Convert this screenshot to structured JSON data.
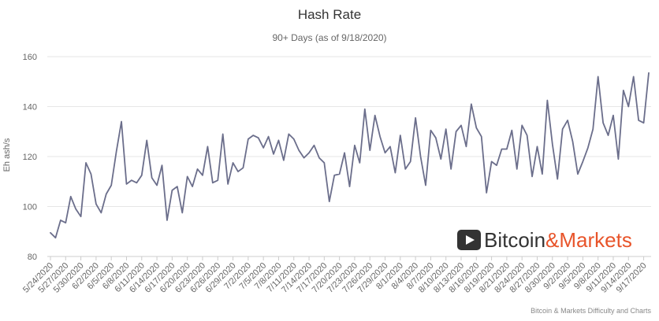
{
  "chart_data": {
    "type": "line",
    "title": "Hash Rate",
    "subtitle": "90+ Days (as of 9/18/2020)",
    "xlabel": "",
    "ylabel": "Eh ash/s",
    "ylim": [
      80,
      160
    ],
    "yticks": [
      "80",
      "100",
      "120",
      "140",
      "160"
    ],
    "grid": true,
    "legend": "none",
    "xticklabels": [
      "5/24/2020",
      "5/27/2020",
      "5/30/2020",
      "6/2/2020",
      "6/5/2020",
      "6/8/2020",
      "6/11/2020",
      "6/14/2020",
      "6/17/2020",
      "6/20/2020",
      "6/23/2020",
      "6/26/2020",
      "6/29/2020",
      "7/2/2020",
      "7/5/2020",
      "7/8/2020",
      "7/11/2020",
      "7/14/2020",
      "7/17/2020",
      "7/20/2020",
      "7/23/2020",
      "7/26/2020",
      "7/29/2020",
      "8/1/2020",
      "8/4/2020",
      "8/7/2020",
      "8/10/2020",
      "8/13/2020",
      "8/16/2020",
      "8/19/2020",
      "8/21/2020",
      "8/24/2020",
      "8/27/2020",
      "8/30/2020",
      "9/2/2020",
      "9/5/2020",
      "9/8/2020",
      "9/11/2020",
      "9/14/2020",
      "9/17/2020"
    ],
    "start_date": "5/24/2020",
    "series": [
      {
        "color": "#6b6e8b",
        "values": [
          89.5,
          87.5,
          94.5,
          93.5,
          104,
          99,
          96,
          117.5,
          113,
          101,
          97.5,
          105,
          108.5,
          122,
          134,
          109,
          110.5,
          109.5,
          112.5,
          126.5,
          111.5,
          108.5,
          116.5,
          94.5,
          106.5,
          108,
          97.5,
          112,
          108,
          115,
          112.5,
          124,
          109.5,
          110.5,
          129,
          109,
          117.5,
          114,
          115.5,
          127,
          128.5,
          127.5,
          123.5,
          128,
          121,
          126.5,
          118.5,
          129,
          127,
          122.5,
          119.5,
          121.5,
          124.5,
          119.5,
          117.5,
          102,
          112.5,
          113,
          121.5,
          108,
          124.5,
          117.5,
          139,
          122.5,
          136.5,
          128,
          121.5,
          124,
          113.5,
          128.5,
          115,
          118,
          135.5,
          120,
          108.5,
          130.5,
          127.5,
          119,
          131,
          115,
          130,
          132.5,
          124,
          141,
          131.5,
          128,
          105.5,
          118,
          116.5,
          123,
          123,
          130.5,
          115,
          132.5,
          128.5,
          112,
          124,
          113,
          142.5,
          125,
          111,
          131,
          134.5,
          126,
          113,
          118,
          123.5,
          131,
          152,
          133.5,
          128.5,
          136.5,
          119,
          146.5,
          140,
          152,
          134.5,
          133.5,
          153.5
        ]
      }
    ]
  },
  "watermark": {
    "brand_part1": "Bitcoin",
    "brand_part2": "&Markets",
    "part1_color": "#333333",
    "part2_color": "#e8542a",
    "icon_color": "#333333"
  },
  "credits": "Bitcoin & Markets Difficulty and Charts"
}
